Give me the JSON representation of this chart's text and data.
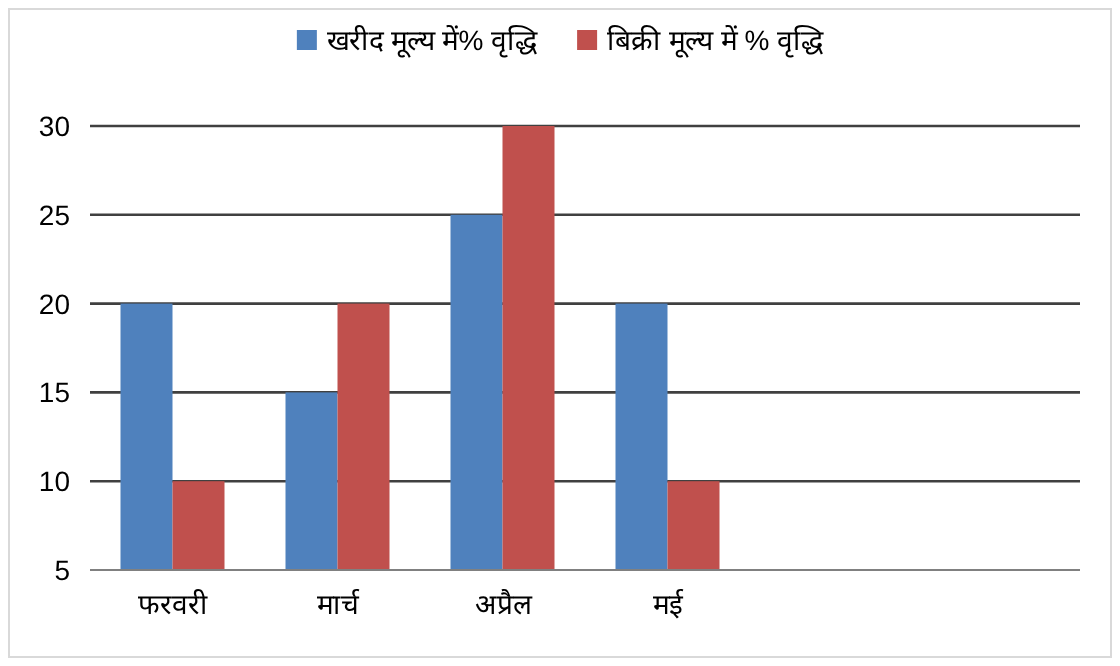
{
  "chart_data": {
    "type": "bar",
    "categories": [
      "फरवरी",
      "मार्च",
      "अप्रैल",
      "मई",
      null,
      null
    ],
    "series": [
      {
        "name": "खरीद मूल्य में% वृद्धि",
        "color": "#4f81bd",
        "values": [
          20,
          15,
          25,
          20,
          null,
          null
        ]
      },
      {
        "name": "बिक्री मूल्य में % वृद्धि",
        "color": "#c0504d",
        "values": [
          10,
          20,
          30,
          10,
          null,
          null
        ]
      }
    ],
    "ylim": [
      5,
      30
    ],
    "yticks": [
      5,
      10,
      15,
      20,
      25,
      30
    ],
    "grid": "y",
    "legend": "top"
  }
}
